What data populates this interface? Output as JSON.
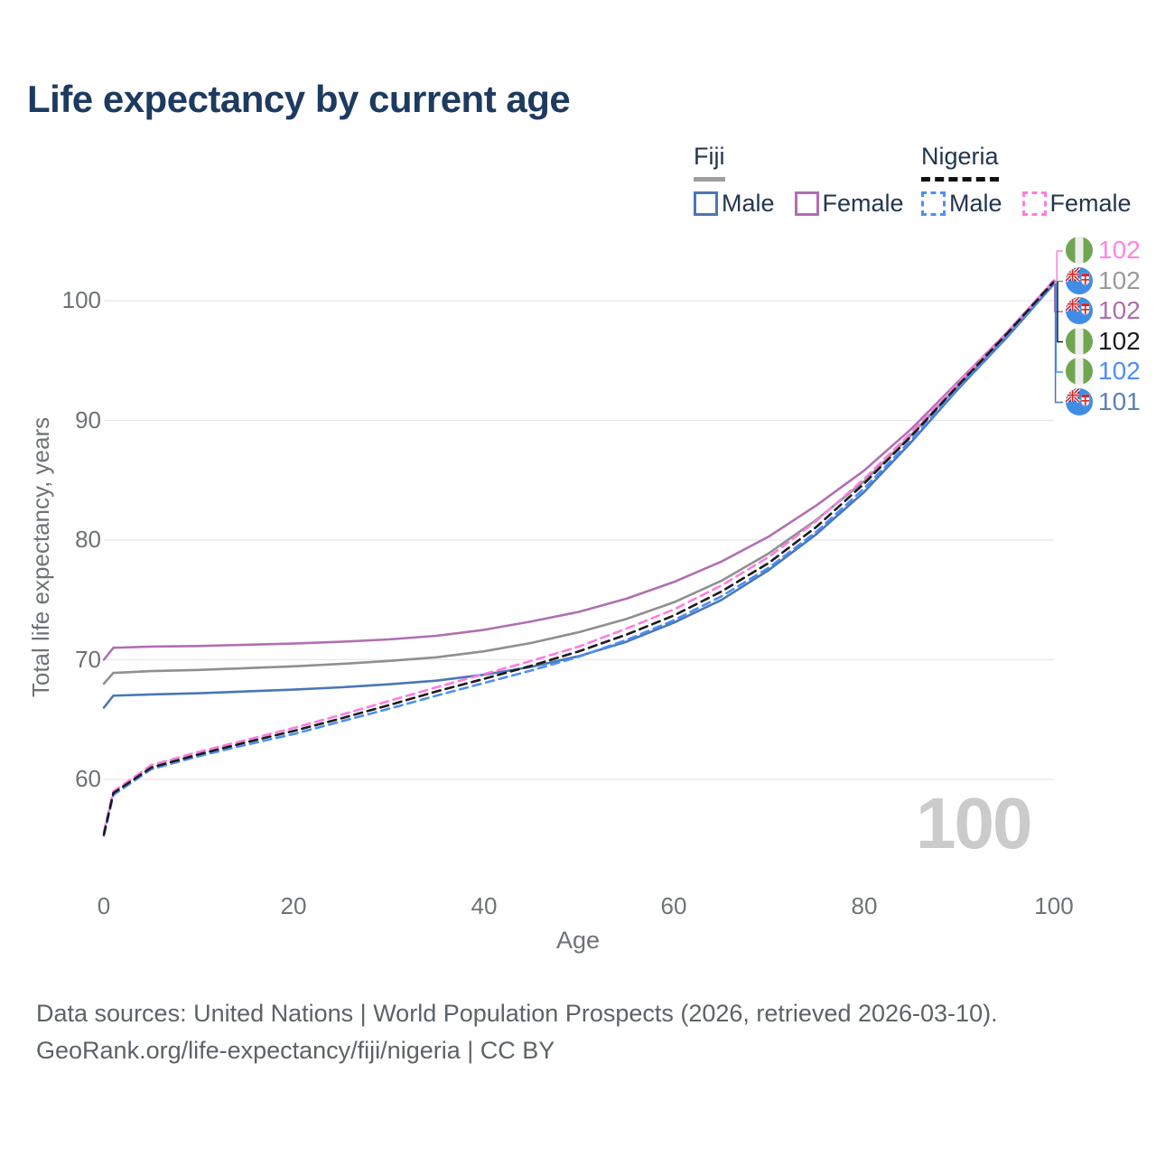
{
  "title": "Life expectancy by current age",
  "legend": {
    "groups": [
      {
        "label": "Fiji",
        "line_style": "solid",
        "underline_color": "#9e9e9e",
        "items": [
          {
            "label": "Male",
            "color": "#4a77b4"
          },
          {
            "label": "Female",
            "color": "#b06fb2"
          }
        ]
      },
      {
        "label": "Nigeria",
        "line_style": "dashed",
        "underline_color": "#111111",
        "items": [
          {
            "label": "Male",
            "color": "#4d8ef7"
          },
          {
            "label": "Female",
            "color": "#ff7ce0"
          }
        ]
      }
    ]
  },
  "watermark": "100",
  "footer": {
    "line1": "Data sources: United Nations | World Population Prospects (2026, retrieved 2026-03-10).",
    "line2": "GeoRank.org/life-expectancy/fiji/nigeria | CC BY"
  },
  "chart_data": {
    "type": "line",
    "title": "Life expectancy by current age",
    "xlabel": "Age",
    "ylabel": "Total life expectancy, years",
    "x_ticks": [
      0,
      20,
      40,
      60,
      80,
      100
    ],
    "y_ticks": [
      60,
      70,
      80,
      90,
      100
    ],
    "xlim": [
      0,
      100
    ],
    "ylim": [
      55,
      103
    ],
    "grid": "horizontal-only",
    "legend_position": "top-right",
    "x": [
      0,
      1,
      5,
      10,
      15,
      20,
      25,
      30,
      35,
      40,
      45,
      50,
      55,
      60,
      65,
      70,
      75,
      80,
      85,
      90,
      95,
      100
    ],
    "series": [
      {
        "id": "fiji-total",
        "name": "Fiji",
        "country": "fiji",
        "sex": "total",
        "color": "#8f8f8f",
        "dash": false,
        "values": [
          68.0,
          68.9,
          69.05,
          69.15,
          69.3,
          69.45,
          69.65,
          69.9,
          70.2,
          70.7,
          71.4,
          72.3,
          73.4,
          74.8,
          76.6,
          78.9,
          81.7,
          84.9,
          88.8,
          93.0,
          97.1,
          101.6
        ],
        "end_label": {
          "text": "102",
          "row": 1,
          "color": "#9a9a9a",
          "flag": "fiji"
        }
      },
      {
        "id": "fiji-female",
        "name": "Fiji Female",
        "country": "fiji",
        "sex": "female",
        "color": "#b06fb2",
        "dash": false,
        "values": [
          70.0,
          71.0,
          71.1,
          71.15,
          71.25,
          71.35,
          71.5,
          71.7,
          72.0,
          72.5,
          73.2,
          74.0,
          75.1,
          76.5,
          78.2,
          80.3,
          82.9,
          85.8,
          89.3,
          93.3,
          97.3,
          101.7
        ],
        "end_label": {
          "text": "102",
          "row": 2,
          "color": "#ad6fad",
          "flag": "fiji"
        }
      },
      {
        "id": "fiji-male",
        "name": "Fiji Male",
        "country": "fiji",
        "sex": "male",
        "color": "#4a77b4",
        "dash": false,
        "values": [
          66.0,
          67.0,
          67.1,
          67.2,
          67.35,
          67.5,
          67.7,
          67.95,
          68.25,
          68.75,
          69.4,
          70.3,
          71.5,
          73.1,
          75.0,
          77.5,
          80.5,
          84.0,
          88.2,
          92.7,
          96.9,
          101.4
        ],
        "end_label": {
          "text": "101",
          "row": 5,
          "color": "#5b7fb9",
          "flag": "fiji"
        }
      },
      {
        "id": "nigeria-male",
        "name": "Nigeria Male",
        "country": "nigeria",
        "sex": "male",
        "color": "#4d8ef7",
        "dash": true,
        "values": [
          55.3,
          58.7,
          60.85,
          61.95,
          62.9,
          63.8,
          64.85,
          65.9,
          67.0,
          68.05,
          69.1,
          70.25,
          71.65,
          73.3,
          75.3,
          77.7,
          80.7,
          84.3,
          88.4,
          92.8,
          97.0,
          101.5
        ],
        "end_label": {
          "text": "102",
          "row": 4,
          "color": "#4d8ef7",
          "flag": "nigeria"
        }
      },
      {
        "id": "nigeria-female",
        "name": "Nigeria Female",
        "country": "nigeria",
        "sex": "female",
        "color": "#ff7ce0",
        "dash": true,
        "values": [
          55.6,
          59.0,
          61.2,
          62.3,
          63.3,
          64.3,
          65.4,
          66.55,
          67.7,
          68.8,
          69.9,
          71.1,
          72.6,
          74.2,
          76.2,
          78.6,
          81.6,
          85.1,
          89.0,
          93.2,
          97.3,
          101.7
        ],
        "end_label": {
          "text": "102",
          "row": 0,
          "color": "#ff85e2",
          "flag": "nigeria"
        }
      },
      {
        "id": "nigeria-total",
        "name": "Nigeria",
        "country": "nigeria",
        "sex": "total",
        "color": "#1b1b1b",
        "dash": true,
        "values": [
          55.4,
          58.85,
          61.0,
          62.1,
          63.1,
          64.05,
          65.1,
          66.2,
          67.35,
          68.4,
          69.5,
          70.7,
          72.1,
          73.7,
          75.7,
          78.1,
          81.1,
          84.7,
          88.7,
          93.0,
          97.2,
          101.6
        ],
        "end_label": {
          "text": "102",
          "row": 3,
          "color": "#1b1b1b",
          "flag": "nigeria"
        }
      }
    ]
  }
}
